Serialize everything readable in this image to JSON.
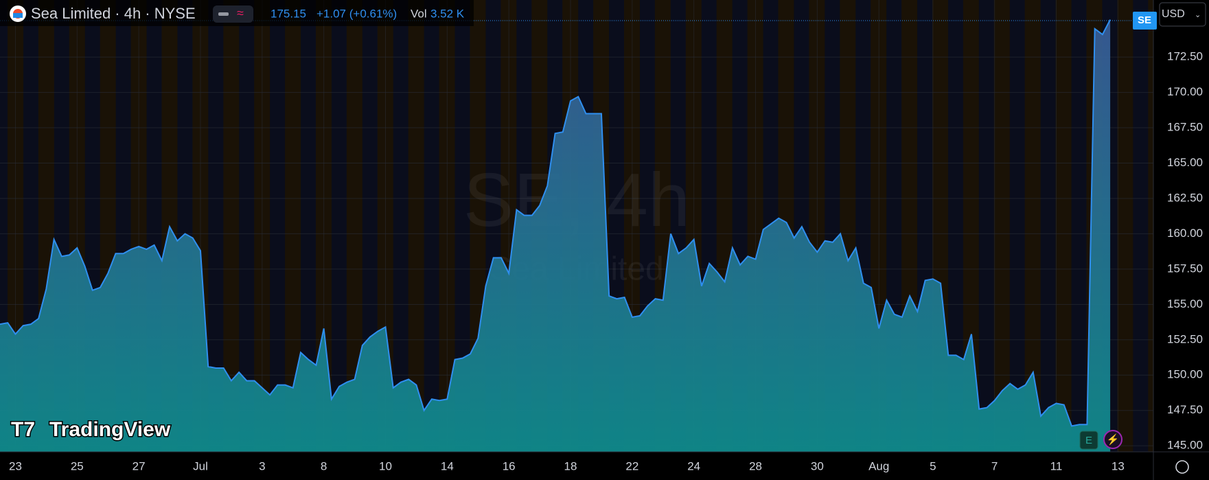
{
  "chart_data": {
    "type": "area",
    "title": "Sea Limited · 4h · NYSE",
    "last_price": "175.15",
    "change": "+1.07 (+0.61%)",
    "volume_label": "Vol",
    "volume": "3.52 K",
    "symbol_badge": "SE",
    "currency": "USD",
    "watermark_symbol": "SE, 4h",
    "watermark_name": "Sea Limited",
    "brand": "TradingView",
    "earnings_marker": "E",
    "categories": [
      null,
      null,
      "23",
      null,
      null,
      null,
      null,
      null,
      null,
      null,
      "25",
      null,
      null,
      null,
      null,
      null,
      null,
      null,
      "27",
      null,
      null,
      null,
      null,
      null,
      null,
      null,
      "Jul",
      null,
      null,
      null,
      null,
      null,
      null,
      null,
      "3",
      null,
      null,
      null,
      null,
      null,
      null,
      null,
      "8",
      null,
      null,
      null,
      null,
      null,
      null,
      null,
      "10",
      null,
      null,
      null,
      null,
      null,
      null,
      null,
      "14",
      null,
      null,
      null,
      null,
      null,
      null,
      null,
      "16",
      null,
      null,
      null,
      null,
      null,
      null,
      null,
      "18",
      null,
      null,
      null,
      null,
      null,
      null,
      null,
      "22",
      null,
      null,
      null,
      null,
      null,
      null,
      null,
      "24",
      null,
      null,
      null,
      null,
      null,
      null,
      null,
      "28",
      null,
      null,
      null,
      null,
      null,
      null,
      null,
      "30",
      null,
      null,
      null,
      null,
      null,
      null,
      null,
      "Aug",
      null,
      null,
      null,
      null,
      null,
      null,
      "5",
      null,
      null,
      null,
      null,
      null,
      null,
      null,
      "7",
      null,
      null,
      null,
      null,
      null,
      null,
      null,
      "11",
      null,
      null,
      null,
      null,
      null,
      null,
      null,
      "13"
    ],
    "series": [
      {
        "name": "SE",
        "color": "#2f8ff0",
        "values": [
          153.6,
          153.7,
          152.9,
          153.5,
          153.6,
          154.0,
          156.1,
          159.6,
          158.4,
          158.5,
          159.0,
          157.7,
          156.0,
          156.2,
          157.2,
          158.6,
          158.6,
          158.9,
          159.1,
          158.9,
          159.2,
          158.1,
          160.5,
          159.5,
          160.0,
          159.7,
          158.8,
          150.6,
          150.5,
          150.5,
          149.6,
          150.2,
          149.6,
          149.6,
          149.1,
          148.6,
          149.3,
          149.3,
          149.1,
          151.6,
          151.1,
          150.7,
          153.3,
          148.3,
          149.2,
          149.5,
          149.7,
          152.1,
          152.7,
          153.1,
          153.4,
          149.1,
          149.5,
          149.7,
          149.3,
          147.5,
          148.3,
          148.2,
          148.3,
          151.1,
          151.2,
          151.5,
          152.6,
          156.3,
          158.3,
          158.3,
          157.2,
          161.7,
          161.3,
          161.3,
          162.0,
          163.4,
          167.1,
          167.2,
          169.4,
          169.7,
          168.5,
          168.5,
          168.5,
          155.6,
          155.4,
          155.5,
          154.1,
          154.2,
          154.9,
          155.4,
          155.3,
          160.0,
          158.6,
          159.0,
          159.6,
          156.3,
          157.9,
          157.3,
          156.6,
          159.0,
          157.8,
          158.4,
          158.2,
          160.3,
          160.7,
          161.1,
          160.8,
          159.7,
          160.5,
          159.4,
          158.7,
          159.5,
          159.4,
          160.0,
          158.1,
          159.0,
          156.5,
          156.2,
          153.3,
          155.3,
          154.3,
          154.1,
          155.6,
          154.5,
          156.7,
          156.8,
          156.5,
          151.4,
          151.4,
          151.1,
          152.9,
          147.6,
          147.7,
          148.2,
          148.9,
          149.4,
          149.0,
          149.3,
          150.2,
          147.1,
          147.7,
          148.0,
          147.9,
          146.4,
          146.5,
          146.5,
          174.5,
          174.1,
          175.15,
          null
        ]
      }
    ],
    "ylim": [
      144.57,
      176.54
    ],
    "yticks": [
      {
        "value": 145,
        "label": "145.00"
      },
      {
        "value": 147.5,
        "label": "147.50"
      },
      {
        "value": 150,
        "label": "150.00"
      },
      {
        "value": 152.5,
        "label": "152.50"
      },
      {
        "value": 155,
        "label": "155.00"
      },
      {
        "value": 157.5,
        "label": "157.50"
      },
      {
        "value": 160,
        "label": "160.00"
      },
      {
        "value": 162.5,
        "label": "162.50"
      },
      {
        "value": 165,
        "label": "165.00"
      },
      {
        "value": 167.5,
        "label": "167.50"
      },
      {
        "value": 170,
        "label": "170.00"
      },
      {
        "value": 172.5,
        "label": "172.50"
      }
    ],
    "grid": true
  }
}
